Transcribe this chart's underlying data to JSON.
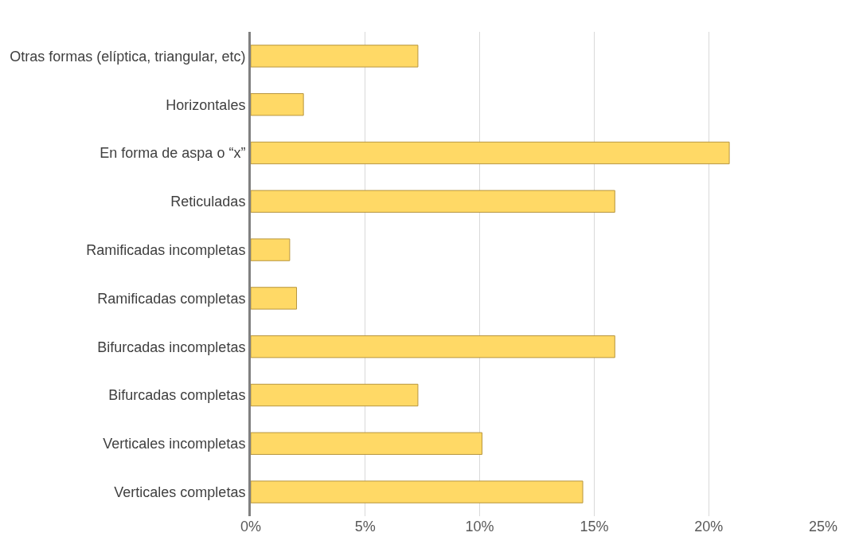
{
  "chart_data": {
    "type": "bar",
    "orientation": "horizontal",
    "categories": [
      "Otras formas (elíptica, triangular, etc)",
      "Horizontales",
      "En forma de aspa o “x”",
      "Reticuladas",
      "Ramificadas incompletas",
      "Ramificadas completas",
      "Bifurcadas incompletas",
      "Bifurcadas completas",
      "Verticales incompletas",
      "Verticales completas"
    ],
    "values": [
      7.3,
      2.3,
      20.9,
      15.9,
      1.7,
      2.0,
      15.9,
      7.3,
      10.1,
      14.5
    ],
    "color": "#ffd966",
    "xlim": [
      0,
      25
    ],
    "xticks": [
      {
        "value": 0,
        "label": "0%"
      },
      {
        "value": 5,
        "label": "5%"
      },
      {
        "value": 10,
        "label": "10%"
      },
      {
        "value": 15,
        "label": "15%"
      },
      {
        "value": 20,
        "label": "20%"
      },
      {
        "value": 25,
        "label": "25%"
      }
    ],
    "grid": "x"
  }
}
